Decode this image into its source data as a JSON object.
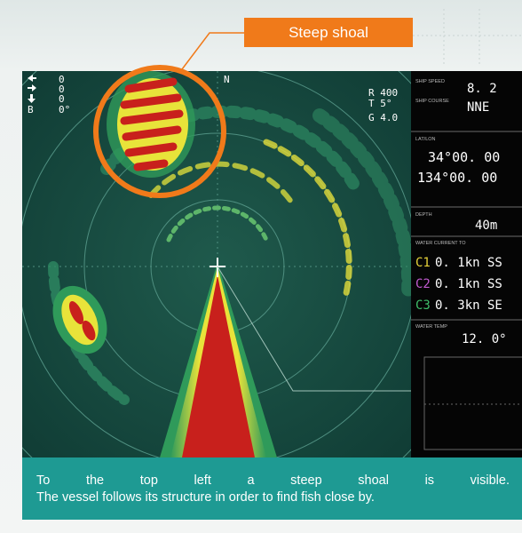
{
  "callout": "Steep shoal",
  "sonar": {
    "indicators": [
      "0",
      "0",
      "0",
      "0°"
    ],
    "bearing_label": "B",
    "north": "N",
    "range": "R 400",
    "tilt": "T 5°",
    "gain": "G 4.0"
  },
  "panel": {
    "ship_speed": {
      "label": "SHIP SPEED",
      "value": "8. 2"
    },
    "ship_course": {
      "label": "SHIP COURSE",
      "value": "NNE"
    },
    "position": {
      "label": "LAT/LON",
      "lat": "34°00. 00",
      "lon": "134°00. 00"
    },
    "depth": {
      "label": "DEPTH",
      "value": "40m"
    },
    "current": {
      "label": "WATER CURRENT TO",
      "layers": [
        {
          "tag": "C1",
          "value": "0. 1kn SS"
        },
        {
          "tag": "C2",
          "value": "0. 1kn SS"
        },
        {
          "tag": "C3",
          "value": "0. 3kn SE"
        }
      ]
    },
    "water_temp": {
      "label": "WATER TEMP",
      "value": "12. 0°"
    }
  },
  "caption": {
    "lines": [
      "To the top left a steep shoal is visible.",
      "The vessel follows its structure in order to find fish close by."
    ]
  }
}
